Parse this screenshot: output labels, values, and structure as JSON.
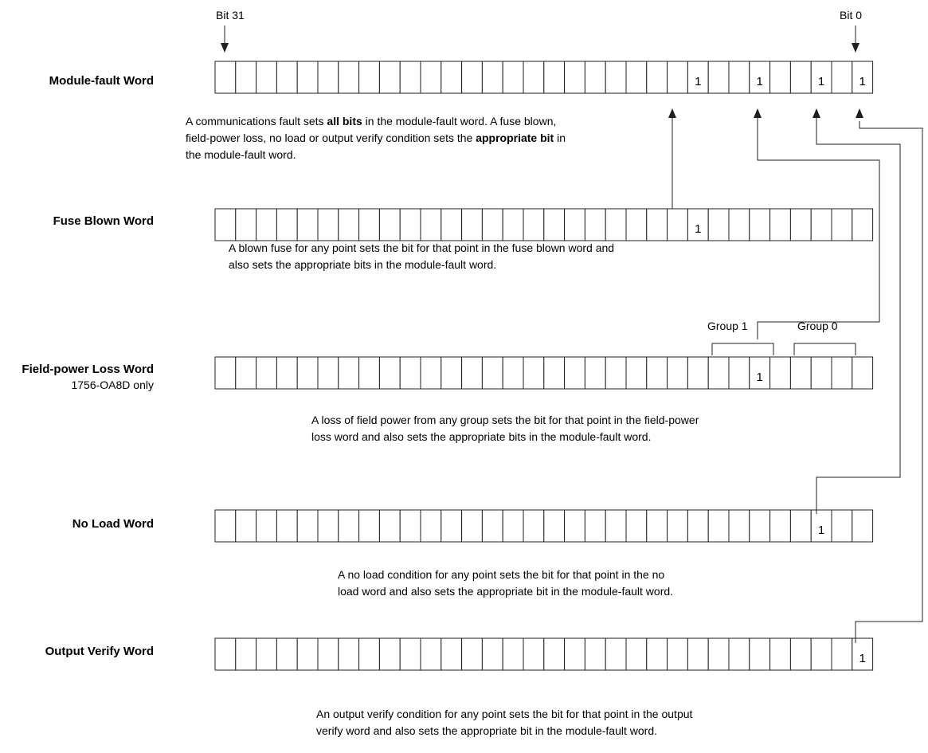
{
  "bit_labels": {
    "msb": "Bit 31",
    "lsb": "Bit 0"
  },
  "words": [
    {
      "id": "module-fault",
      "label": "Module-fault Word",
      "sublabel": "",
      "set_bits": [
        8,
        5,
        2,
        0
      ]
    },
    {
      "id": "fuse-blown",
      "label": "Fuse Blown Word",
      "sublabel": "",
      "set_bits": [
        8
      ]
    },
    {
      "id": "field-power-loss",
      "label": "Field-power Loss Word",
      "sublabel": "1756-OA8D only",
      "set_bits": [
        5
      ]
    },
    {
      "id": "no-load",
      "label": "No Load Word",
      "sublabel": "",
      "set_bits": [
        2
      ]
    },
    {
      "id": "output-verify",
      "label": "Output Verify Word",
      "sublabel": "",
      "set_bits": [
        0
      ]
    }
  ],
  "bit_value": "1",
  "captions": {
    "module_fault": [
      [
        {
          "t": "A communications fault sets "
        },
        {
          "t": "all bits",
          "b": true
        },
        {
          "t": " in the module-fault word. A fuse blown,"
        }
      ],
      [
        {
          "t": "field-power loss, no load or output verify condition sets the "
        },
        {
          "t": "appropriate bit",
          "b": true
        },
        {
          "t": " in"
        }
      ],
      [
        {
          "t": "the module-fault word."
        }
      ]
    ],
    "fuse_blown": [
      "A blown fuse for any point sets the bit for that point in the fuse blown word and",
      "also sets the appropriate bits in the module-fault word."
    ],
    "field_power_loss": [
      "A loss of field power from any group sets the bit for that point in the field-power",
      "loss word and also sets the appropriate bits in the module-fault word."
    ],
    "no_load": [
      "A no load condition for any point sets the bit for that point in the no",
      "load word and also sets the appropriate bit in the module-fault word."
    ],
    "output_verify": [
      "An output verify condition for any point sets the bit for that point in the output",
      "verify word and also sets the appropriate bit in the module-fault word."
    ]
  },
  "groups": {
    "group1": "Group 1",
    "group0": "Group 0"
  }
}
